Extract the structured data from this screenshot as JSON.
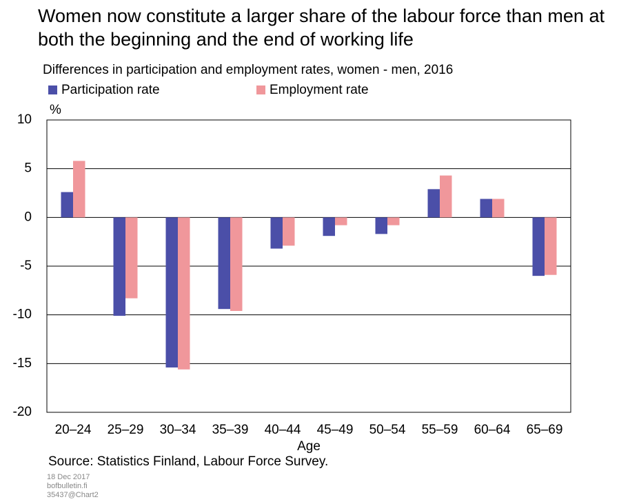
{
  "chart_data": {
    "type": "bar",
    "title": "Women now constitute a larger share of the labour force than men at both the beginning and the end of working life",
    "subtitle": "Differences in participation and employment rates, women - men, 2016",
    "y_unit": "%",
    "x_label": "Age",
    "source": "Source: Statistics Finland,  Labour Force Survey.",
    "footer": [
      "18 Dec 2017",
      "bofbulletin.fi",
      "35437@Chart2"
    ],
    "categories": [
      "20–24",
      "25–29",
      "30–34",
      "35–39",
      "40–44",
      "45–49",
      "50–54",
      "55–59",
      "60–64",
      "65–69"
    ],
    "series": [
      {
        "name": "Participation rate",
        "color": "#4b4fa8",
        "values": [
          2.6,
          -10.1,
          -15.4,
          -9.4,
          -3.2,
          -1.9,
          -1.7,
          2.9,
          1.9,
          -6.0
        ]
      },
      {
        "name": "Employment rate",
        "color": "#f0979b",
        "values": [
          5.8,
          -8.3,
          -15.6,
          -9.6,
          -2.9,
          -0.8,
          -0.8,
          4.3,
          1.9,
          -5.9
        ]
      }
    ],
    "ylim": [
      -20,
      10
    ],
    "yticks": [
      -20,
      -15,
      -10,
      -5,
      0,
      5,
      10
    ],
    "grid": true
  }
}
